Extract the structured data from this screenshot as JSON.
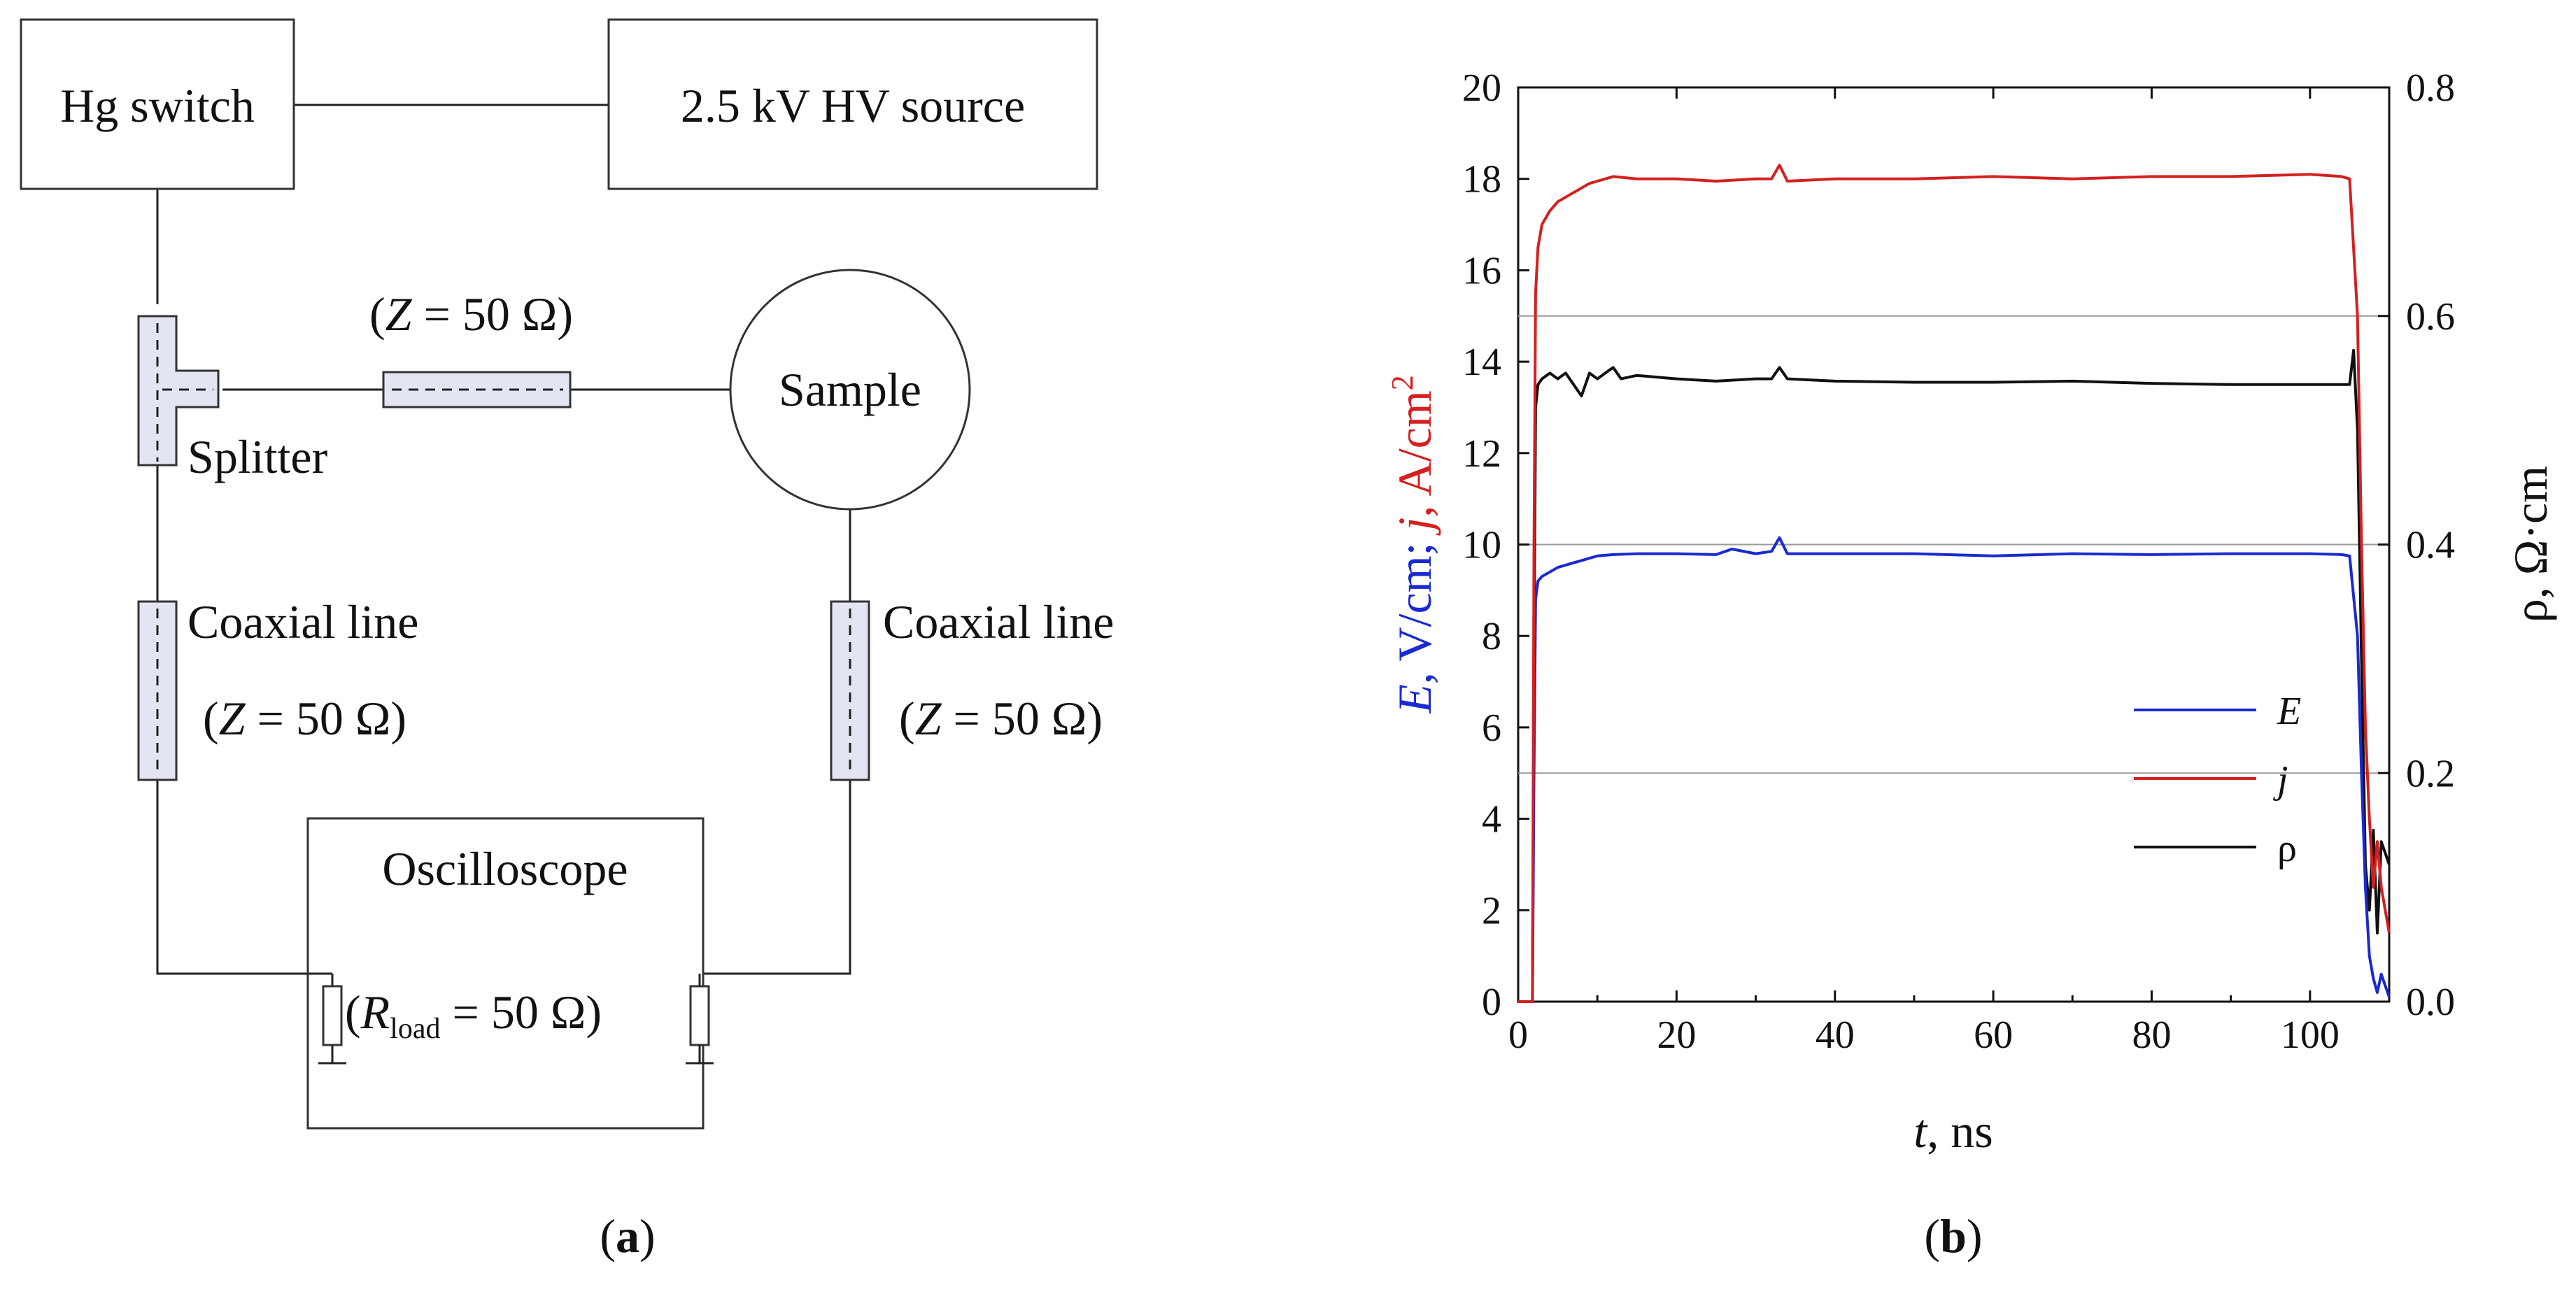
{
  "diagram": {
    "hg_switch": "Hg switch",
    "hv_source": "2.5 kV HV source",
    "impedance_top": "(Z = 50 Ω)",
    "impedance_top_parts": {
      "open": "(",
      "symbol": "Z",
      "rest": " = 50 Ω)"
    },
    "sample": "Sample",
    "splitter": "Splitter",
    "coax_left": "Coaxial line",
    "coax_right": "Coaxial line",
    "impedance_left": "(Z = 50 Ω)",
    "impedance_right": "(Z = 50 Ω)",
    "oscilloscope": "Oscilloscope",
    "rload": "(Rload = 50 Ω)",
    "rload_parts": {
      "open": "(",
      "symbol": "R",
      "subscript": "load",
      "rest": " = 50 Ω)"
    },
    "panel_label": "(a)",
    "panel_letter": "a"
  },
  "chart_data": {
    "type": "line",
    "panel_label": "(b)",
    "panel_letter": "b",
    "xlabel": "t, ns",
    "xlabel_parts": {
      "symbol": "t",
      "unit": ", ns"
    },
    "ylabel": "E, V/cm; j, A/cm2",
    "ylabel_parts": {
      "e_symbol": "E",
      "e_unit": ", V/cm; ",
      "j_symbol": "j",
      "j_unit": ", A/cm",
      "j_sup": "2"
    },
    "ylabel2": "ρ, Ω·cm",
    "xlim": [
      0,
      110
    ],
    "ylim": [
      0,
      20
    ],
    "ylim2": [
      0,
      0.8
    ],
    "xticks": [
      0,
      20,
      40,
      60,
      80,
      100
    ],
    "yticks": [
      0,
      2,
      4,
      6,
      8,
      10,
      12,
      14,
      16,
      18,
      20
    ],
    "yticks2": [
      "0.0",
      "0.2",
      "0.4",
      "0.6",
      "0.8"
    ],
    "gridlines_y": [
      5,
      10,
      15
    ],
    "legend_position": "lower-right",
    "series": [
      {
        "name": "E",
        "axis": "left",
        "color": "#1a2ad0",
        "x": [
          0,
          1.8,
          2.0,
          2.2,
          2.5,
          3,
          4,
          5,
          6,
          7,
          8,
          9,
          10,
          12,
          15,
          20,
          25,
          27,
          30,
          32,
          33,
          34,
          40,
          50,
          60,
          70,
          80,
          90,
          100,
          104,
          105,
          106,
          106.5,
          107,
          107.5,
          108,
          108.5,
          109,
          110
        ],
        "y": [
          0,
          0,
          5,
          8.8,
          9.2,
          9.3,
          9.4,
          9.5,
          9.55,
          9.6,
          9.65,
          9.7,
          9.75,
          9.78,
          9.8,
          9.8,
          9.78,
          9.9,
          9.8,
          9.85,
          10.15,
          9.8,
          9.8,
          9.8,
          9.75,
          9.8,
          9.78,
          9.8,
          9.8,
          9.78,
          9.75,
          8,
          5,
          2.5,
          1.0,
          0.5,
          0.2,
          0.6,
          0.1
        ]
      },
      {
        "name": "j",
        "axis": "left",
        "color": "#d42020",
        "x": [
          0,
          1.8,
          2.0,
          2.2,
          2.5,
          3,
          4,
          5,
          6,
          7,
          8,
          9,
          10,
          12,
          15,
          20,
          25,
          30,
          32,
          33,
          34,
          40,
          50,
          60,
          70,
          80,
          90,
          100,
          104,
          105,
          106,
          106.5,
          107,
          107.5,
          108,
          108.5,
          109,
          110
        ],
        "y": [
          0,
          0,
          10,
          15.5,
          16.5,
          17.0,
          17.3,
          17.5,
          17.6,
          17.7,
          17.8,
          17.9,
          17.95,
          18.05,
          18.0,
          18.0,
          17.95,
          18.0,
          18.0,
          18.3,
          17.95,
          18.0,
          18.0,
          18.05,
          18.0,
          18.05,
          18.05,
          18.1,
          18.05,
          18.0,
          15,
          10,
          6,
          4,
          2.5,
          3.5,
          2.5,
          1.5
        ]
      },
      {
        "name": "ρ",
        "axis": "right",
        "color": "#111111",
        "x": [
          0,
          1.8,
          2.0,
          2.2,
          2.5,
          3,
          4,
          5,
          6,
          7,
          8,
          9,
          10,
          11,
          12,
          13,
          15,
          20,
          25,
          30,
          32,
          33,
          34,
          40,
          50,
          60,
          70,
          80,
          90,
          100,
          104,
          105,
          105.5,
          106,
          106.5,
          107,
          107.5,
          108,
          108.5,
          109,
          110
        ],
        "y": [
          0,
          0,
          0.3,
          0.52,
          0.54,
          0.545,
          0.55,
          0.545,
          0.55,
          0.54,
          0.53,
          0.55,
          0.545,
          0.55,
          0.555,
          0.545,
          0.548,
          0.545,
          0.543,
          0.545,
          0.545,
          0.555,
          0.545,
          0.543,
          0.542,
          0.542,
          0.543,
          0.541,
          0.54,
          0.54,
          0.54,
          0.54,
          0.57,
          0.5,
          0.3,
          0.12,
          0.08,
          0.15,
          0.06,
          0.14,
          0.12
        ]
      }
    ]
  }
}
